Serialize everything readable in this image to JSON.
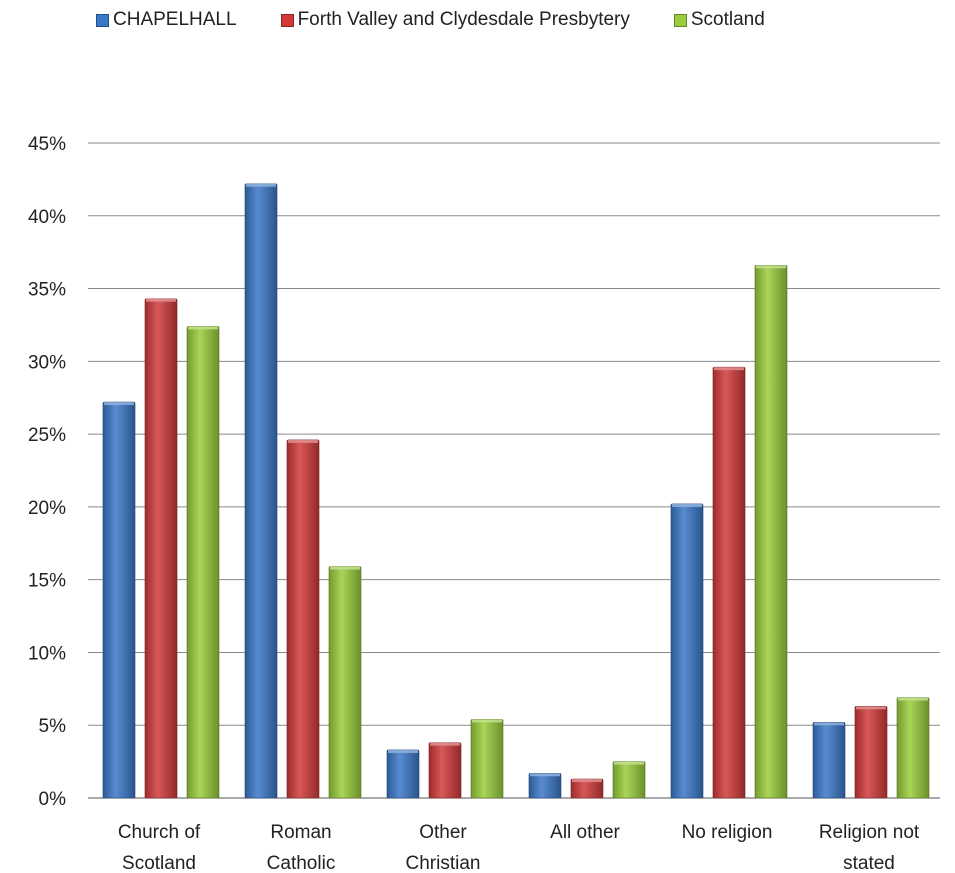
{
  "chart_data": {
    "type": "bar",
    "title": "",
    "xlabel": "",
    "ylabel": "",
    "ylim": [
      0,
      45
    ],
    "y_tick_step": 5,
    "y_tick_format": "percent",
    "grid": true,
    "legend_position": "top",
    "categories": [
      [
        "Church of",
        "Scotland"
      ],
      [
        "Roman",
        "Catholic"
      ],
      [
        "Other",
        "Christian"
      ],
      [
        "All other"
      ],
      [
        "No religion"
      ],
      [
        "Religion not",
        "stated"
      ]
    ],
    "series": [
      {
        "name": "CHAPELHALL",
        "color": "#3a78c9",
        "values": [
          27.2,
          42.2,
          3.3,
          1.7,
          20.2,
          5.2
        ]
      },
      {
        "name": "Forth Valley and Clydesdale Presbytery",
        "color": "#d23a3a",
        "values": [
          34.3,
          24.6,
          3.8,
          1.3,
          29.6,
          6.3
        ]
      },
      {
        "name": "Scotland",
        "color": "#9acd3c",
        "values": [
          32.4,
          15.9,
          5.4,
          2.5,
          36.6,
          6.9
        ]
      }
    ]
  }
}
